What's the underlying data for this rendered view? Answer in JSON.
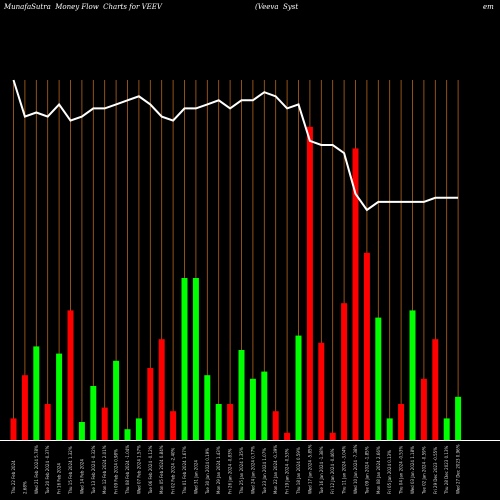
{
  "header": {
    "left": "MunafaSutra  Money Flow  Charts for VEEV",
    "middle": "(Veeva  Syst",
    "right": "em"
  },
  "chart_data": {
    "type": "bar",
    "title": "MunafaSutra  Money Flow  Charts for VEEV",
    "colors": {
      "up": "#00ff00",
      "down": "#ff0000",
      "grid": "#b5651d",
      "line": "#ffffff",
      "background": "#000000"
    },
    "bar_ylim": [
      0,
      100
    ],
    "bars": [
      {
        "v": 6,
        "d": "down"
      },
      {
        "v": 18,
        "d": "down"
      },
      {
        "v": 26,
        "d": "up"
      },
      {
        "v": 10,
        "d": "down"
      },
      {
        "v": 24,
        "d": "up"
      },
      {
        "v": 36,
        "d": "down"
      },
      {
        "v": 5,
        "d": "up"
      },
      {
        "v": 15,
        "d": "up"
      },
      {
        "v": 9,
        "d": "down"
      },
      {
        "v": 22,
        "d": "up"
      },
      {
        "v": 3,
        "d": "up"
      },
      {
        "v": 6,
        "d": "up"
      },
      {
        "v": 20,
        "d": "down"
      },
      {
        "v": 28,
        "d": "down"
      },
      {
        "v": 8,
        "d": "down"
      },
      {
        "v": 45,
        "d": "up"
      },
      {
        "v": 45,
        "d": "up"
      },
      {
        "v": 18,
        "d": "up"
      },
      {
        "v": 10,
        "d": "up"
      },
      {
        "v": 10,
        "d": "down"
      },
      {
        "v": 25,
        "d": "up"
      },
      {
        "v": 17,
        "d": "up"
      },
      {
        "v": 19,
        "d": "up"
      },
      {
        "v": 8,
        "d": "down"
      },
      {
        "v": 2,
        "d": "down"
      },
      {
        "v": 29,
        "d": "up"
      },
      {
        "v": 87,
        "d": "down"
      },
      {
        "v": 27,
        "d": "down"
      },
      {
        "v": 2,
        "d": "down"
      },
      {
        "v": 38,
        "d": "down"
      },
      {
        "v": 81,
        "d": "down"
      },
      {
        "v": 52,
        "d": "down"
      },
      {
        "v": 34,
        "d": "up"
      },
      {
        "v": 6,
        "d": "up"
      },
      {
        "v": 10,
        "d": "down"
      },
      {
        "v": 36,
        "d": "up"
      },
      {
        "v": 17,
        "d": "down"
      },
      {
        "v": 28,
        "d": "down"
      },
      {
        "v": 6,
        "d": "up"
      },
      {
        "v": 12,
        "d": "up"
      }
    ],
    "price_line": [
      100,
      91,
      92,
      91,
      94,
      90,
      91,
      93,
      93,
      94,
      95,
      96,
      94,
      91,
      90,
      93,
      93,
      94,
      95,
      93,
      95,
      95,
      97,
      96,
      93,
      94,
      85,
      84,
      84,
      82,
      72,
      68,
      70,
      70,
      70,
      70,
      70,
      71,
      71,
      71
    ],
    "line_ylim": [
      0,
      100
    ],
    "x_labels": [
      "Thu 22 Feb 2024",
      "2.68%",
      "Wed 21 Feb 2024 5.78%",
      "Tue 20 Feb 2024 -0.37%",
      "Fri 16 Feb 2024",
      "Thu 15 Feb 2024 1.32%",
      "Wed 14 Feb 2024",
      "Tue 13 Feb 2024 -0.32%",
      "Mon 12 Feb 2024 2.01%",
      "Fri 09 Feb 2024 0.98%",
      "Thu 08 Feb 2024 -1.04%",
      "Wed 07 Feb 2024 1.57%",
      "Tue 06 Feb 2024 -0.12%",
      "Mon 05 Feb 2024 0.84%",
      "Fri 02 Feb 2024 -2.40%",
      "Thu 01 Feb 2024 1.67%",
      "Wed 31 Jan 2024",
      "Tue 30 Jan 2024 0.19%",
      "Mon 29 Jan 2024 1.43%",
      "Fri 26 Jan 2024 -0.83%",
      "Thu 25 Jan 2024 1.35%",
      "Wed 24 Jan 2024 0.77%",
      "Tue 23 Jan 2024 1.07%",
      "Mon 22 Jan 2024 -0.39%",
      "Fri 19 Jan 2024 -0.53%",
      "Thu 18 Jan 2024 0.59%",
      "Wed 17 Jan 2024 -5.85%",
      "Tue 16 Jan 2024 -1.38%",
      "Fri 12 Jan 2024 -0.46%",
      "Thu 11 Jan 2024 -3.04%",
      "Wed 10 Jan 2024 -7.38%",
      "Tue 09 Jan 2024 -1.85%",
      "Mon 08 Jan 2024 2.66%",
      "Fri 05 Jan 2024 0.13%",
      "Thu 04 Jan 2024 -0.53%",
      "Wed 03 Jan 2024 1.18%",
      "Tue 02 Jan 2024 -0.59%",
      "Fri 29 Dec 2023 -0.55%",
      "Thu 28 Dec 2023 0.13%",
      "Wed 27 Dec 2023 0.96%"
    ]
  }
}
